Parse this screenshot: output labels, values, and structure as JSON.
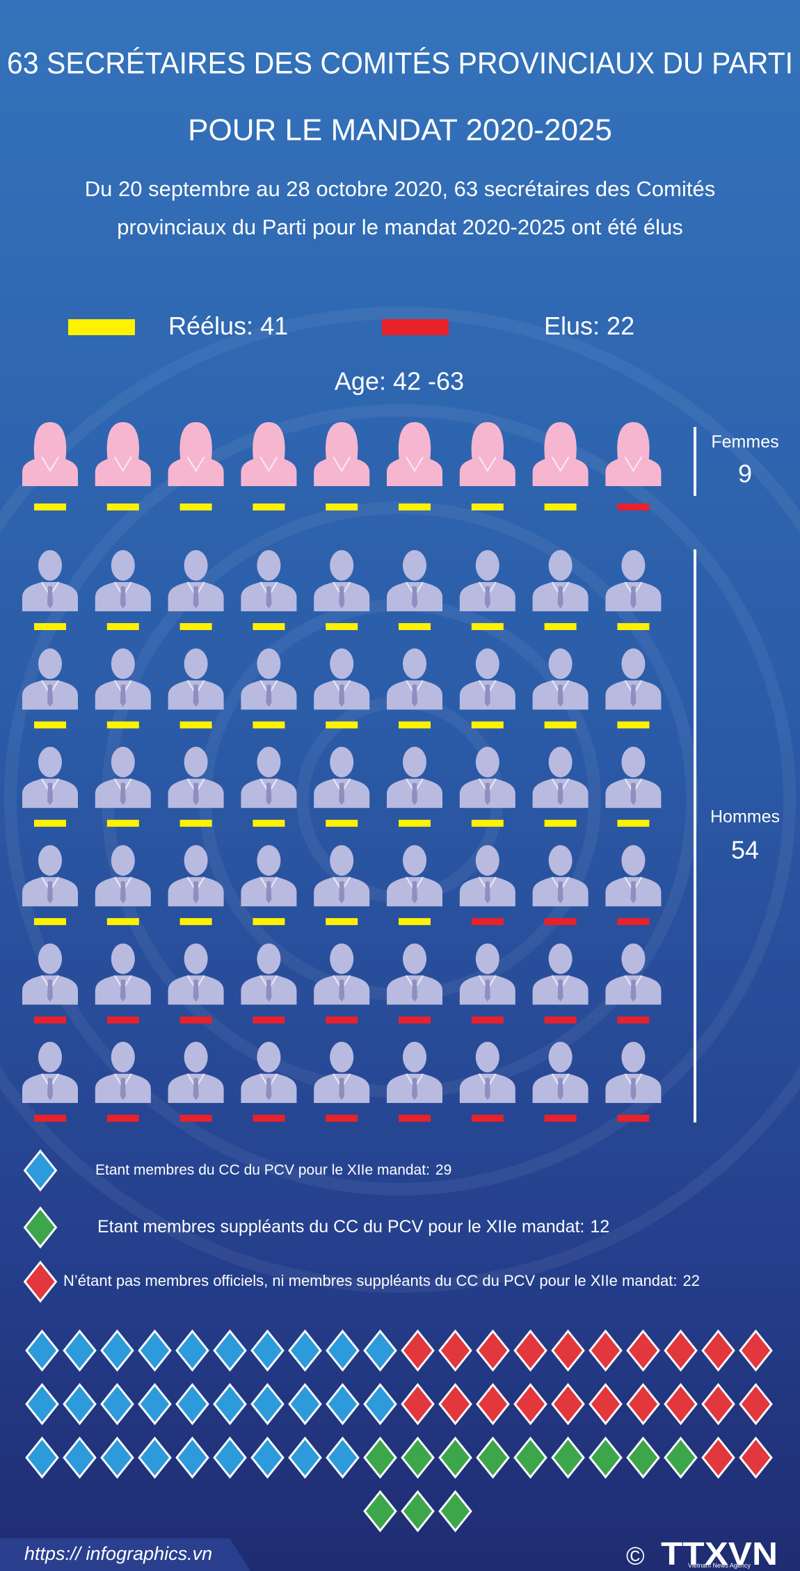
{
  "header": {
    "title_lines": [
      "63 SECRÉTAIRES DES COMITÉS PROVINCIAUX DU PARTI",
      "POUR LE MANDAT 2020-2025"
    ],
    "subtitle_lines": [
      "Du 20 septembre au 28 octobre 2020,  63 secrétaires des Comités",
      "provinciaux du Parti  pour le mandat 2020-2025 ont été élus"
    ]
  },
  "legend": [
    {
      "label": "Réélus:",
      "value": 41,
      "color": "#fff200"
    },
    {
      "label": "Elus:",
      "value": 22,
      "color": "#e8212b"
    }
  ],
  "age": "Age: 42 -63",
  "groups": [
    {
      "label": "Femmes",
      "count": 9,
      "reelus": 8,
      "icon_color": "#f6b6d0"
    },
    {
      "label": "Hommes",
      "count": 54,
      "reelus": 33,
      "icon_color": "#b9badf"
    }
  ],
  "membership": [
    {
      "label": "Etant membres du CC du PCV pour le XIIe mandat:",
      "value": 29,
      "color": "#2d9bdb"
    },
    {
      "label": "Etant membres suppléants du CC du PCV pour le XIIe mandat:",
      "value": 12,
      "color": "#3ea64a"
    },
    {
      "label": "N’étant pas membres officiels, ni membres suppléants du CC du PCV pour le XIIe mandat:",
      "value": 22,
      "color": "#e2373c"
    }
  ],
  "footer": {
    "url": "https:// infographics.vn",
    "copyright": "©",
    "logo": "TTXVN",
    "logo_sub": "Vietnam News Agency"
  }
}
